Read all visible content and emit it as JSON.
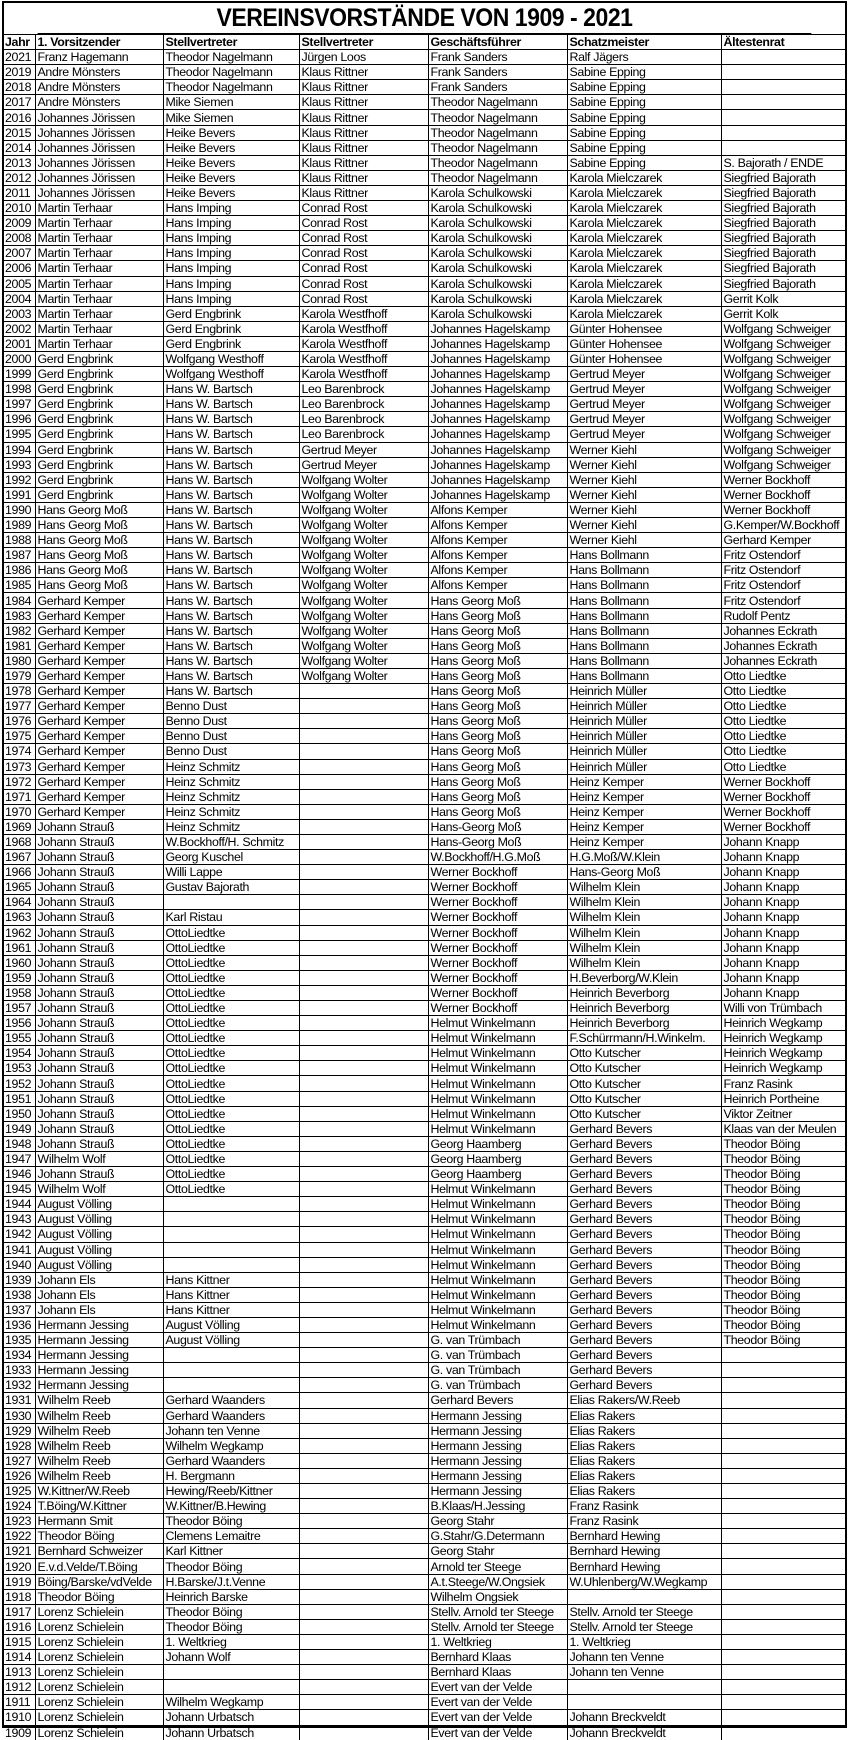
{
  "title": "VEREINSVORSTÄNDE VON 1909 - 2021",
  "columns": [
    "Jahr",
    "1. Vorsitzender",
    "Stellvertreter",
    "Stellvertreter",
    "Geschäftsführer",
    "Schatzmeister",
    "Ältestenrat"
  ],
  "rows": [
    [
      "2021",
      "Franz Hagemann",
      "Theodor Nagelmann",
      "Jürgen Loos",
      "Frank Sanders",
      "Ralf Jägers",
      ""
    ],
    [
      "2019",
      "Andre Mönsters",
      "Theodor Nagelmann",
      "Klaus Rittner",
      "Frank Sanders",
      "Sabine Epping",
      ""
    ],
    [
      "2018",
      "Andre Mönsters",
      "Theodor Nagelmann",
      "Klaus Rittner",
      "Frank Sanders",
      "Sabine Epping",
      ""
    ],
    [
      "2017",
      "Andre Mönsters",
      "Mike Siemen",
      "Klaus Rittner",
      "Theodor Nagelmann",
      "Sabine Epping",
      ""
    ],
    [
      "2016",
      "Johannes Jörissen",
      "Mike Siemen",
      "Klaus Rittner",
      "Theodor Nagelmann",
      "Sabine Epping",
      ""
    ],
    [
      "2015",
      "Johannes Jörissen",
      "Heike Bevers",
      "Klaus Rittner",
      "Theodor Nagelmann",
      "Sabine Epping",
      ""
    ],
    [
      "2014",
      "Johannes Jörissen",
      "Heike Bevers",
      "Klaus Rittner",
      "Theodor Nagelmann",
      "Sabine Epping",
      ""
    ],
    [
      "2013",
      "Johannes Jörissen",
      "Heike Bevers",
      "Klaus Rittner",
      "Theodor Nagelmann",
      "Sabine Epping",
      "S. Bajorath / ENDE"
    ],
    [
      "2012",
      "Johannes Jörissen",
      "Heike Bevers",
      "Klaus Rittner",
      "Theodor Nagelmann",
      "Karola Mielczarek",
      "Siegfried Bajorath"
    ],
    [
      "2011",
      "Johannes Jörissen",
      "Heike Bevers",
      "Klaus Rittner",
      "Karola Schulkowski",
      "Karola Mielczarek",
      "Siegfried Bajorath"
    ],
    [
      "2010",
      "Martin Terhaar",
      "Hans Imping",
      "Conrad Rost",
      "Karola Schulkowski",
      "Karola Mielczarek",
      "Siegfried Bajorath"
    ],
    [
      "2009",
      "Martin Terhaar",
      "Hans Imping",
      "Conrad Rost",
      "Karola Schulkowski",
      "Karola Mielczarek",
      "Siegfried Bajorath"
    ],
    [
      "2008",
      "Martin Terhaar",
      "Hans Imping",
      "Conrad Rost",
      "Karola Schulkowski",
      "Karola Mielczarek",
      "Siegfried Bajorath"
    ],
    [
      "2007",
      "Martin Terhaar",
      "Hans Imping",
      "Conrad Rost",
      "Karola Schulkowski",
      "Karola Mielczarek",
      "Siegfried Bajorath"
    ],
    [
      "2006",
      "Martin Terhaar",
      "Hans Imping",
      "Conrad Rost",
      "Karola Schulkowski",
      "Karola Mielczarek",
      "Siegfried Bajorath"
    ],
    [
      "2005",
      "Martin Terhaar",
      "Hans Imping",
      "Conrad Rost",
      "Karola Schulkowski",
      "Karola Mielczarek",
      "Siegfried Bajorath"
    ],
    [
      "2004",
      "Martin Terhaar",
      "Hans Imping",
      "Conrad Rost",
      "Karola Schulkowski",
      "Karola Mielczarek",
      "Gerrit Kolk"
    ],
    [
      "2003",
      "Martin Terhaar",
      "Gerd Engbrink",
      "Karola Westfhoff",
      "Karola Schulkowski",
      "Karola Mielczarek",
      "Gerrit Kolk"
    ],
    [
      "2002",
      "Martin Terhaar",
      "Gerd Engbrink",
      "Karola Westfhoff",
      "Johannes Hagelskamp",
      "Günter Hohensee",
      "Wolfgang Schweiger"
    ],
    [
      "2001",
      "Martin Terhaar",
      "Gerd Engbrink",
      "Karola Westfhoff",
      "Johannes Hagelskamp",
      "Günter Hohensee",
      "Wolfgang Schweiger"
    ],
    [
      "2000",
      "Gerd Engbrink",
      "Wolfgang Westhoff",
      "Karola Westfhoff",
      "Johannes Hagelskamp",
      "Günter Hohensee",
      "Wolfgang Schweiger"
    ],
    [
      "1999",
      "Gerd Engbrink",
      "Wolfgang Westhoff",
      "Karola Westfhoff",
      "Johannes Hagelskamp",
      "Gertrud Meyer",
      "Wolfgang Schweiger"
    ],
    [
      "1998",
      "Gerd Engbrink",
      "Hans W. Bartsch",
      "Leo Barenbrock",
      "Johannes Hagelskamp",
      "Gertrud Meyer",
      "Wolfgang Schweiger"
    ],
    [
      "1997",
      "Gerd Engbrink",
      "Hans W. Bartsch",
      "Leo Barenbrock",
      "Johannes Hagelskamp",
      "Gertrud Meyer",
      "Wolfgang Schweiger"
    ],
    [
      "1996",
      "Gerd Engbrink",
      "Hans W. Bartsch",
      "Leo Barenbrock",
      "Johannes Hagelskamp",
      "Gertrud Meyer",
      "Wolfgang Schweiger"
    ],
    [
      "1995",
      "Gerd Engbrink",
      "Hans W. Bartsch",
      "Leo Barenbrock",
      "Johannes Hagelskamp",
      "Gertrud Meyer",
      "Wolfgang Schweiger"
    ],
    [
      "1994",
      "Gerd Engbrink",
      "Hans W. Bartsch",
      "Gertrud Meyer",
      "Johannes Hagelskamp",
      "Werner Kiehl",
      "Wolfgang Schweiger"
    ],
    [
      "1993",
      "Gerd Engbrink",
      "Hans W. Bartsch",
      "Gertrud Meyer",
      "Johannes Hagelskamp",
      "Werner Kiehl",
      "Wolfgang Schweiger"
    ],
    [
      "1992",
      "Gerd Engbrink",
      "Hans W. Bartsch",
      "Wolfgang Wolter",
      "Johannes Hagelskamp",
      "Werner Kiehl",
      "Werner Bockhoff"
    ],
    [
      "1991",
      "Gerd Engbrink",
      "Hans W. Bartsch",
      "Wolfgang Wolter",
      "Johannes Hagelskamp",
      "Werner Kiehl",
      "Werner Bockhoff"
    ],
    [
      "1990",
      "Hans Georg Moß",
      "Hans W. Bartsch",
      "Wolfgang Wolter",
      "Alfons Kemper",
      "Werner Kiehl",
      "Werner Bockhoff"
    ],
    [
      "1989",
      "Hans Georg Moß",
      "Hans W. Bartsch",
      "Wolfgang Wolter",
      "Alfons Kemper",
      "Werner Kiehl",
      "G.Kemper/W.Bockhoff"
    ],
    [
      "1988",
      "Hans Georg Moß",
      "Hans W. Bartsch",
      "Wolfgang Wolter",
      "Alfons Kemper",
      "Werner Kiehl",
      "Gerhard Kemper"
    ],
    [
      "1987",
      "Hans Georg Moß",
      "Hans W. Bartsch",
      "Wolfgang Wolter",
      "Alfons Kemper",
      "Hans Bollmann",
      "Fritz Ostendorf"
    ],
    [
      "1986",
      "Hans Georg Moß",
      "Hans W. Bartsch",
      "Wolfgang Wolter",
      "Alfons Kemper",
      "Hans Bollmann",
      "Fritz Ostendorf"
    ],
    [
      "1985",
      "Hans Georg Moß",
      "Hans W. Bartsch",
      "Wolfgang Wolter",
      "Alfons Kemper",
      "Hans Bollmann",
      "Fritz Ostendorf"
    ],
    [
      "1984",
      "Gerhard Kemper",
      "Hans W. Bartsch",
      "Wolfgang Wolter",
      "Hans Georg Moß",
      "Hans Bollmann",
      "Fritz Ostendorf"
    ],
    [
      "1983",
      "Gerhard Kemper",
      "Hans W. Bartsch",
      "Wolfgang Wolter",
      "Hans Georg Moß",
      "Hans Bollmann",
      "Rudolf Pentz"
    ],
    [
      "1982",
      "Gerhard Kemper",
      "Hans W. Bartsch",
      "Wolfgang Wolter",
      "Hans Georg Moß",
      "Hans Bollmann",
      "Johannes Eckrath"
    ],
    [
      "1981",
      "Gerhard Kemper",
      "Hans W. Bartsch",
      "Wolfgang Wolter",
      "Hans Georg Moß",
      "Hans Bollmann",
      "Johannes Eckrath"
    ],
    [
      "1980",
      "Gerhard Kemper",
      "Hans W. Bartsch",
      "Wolfgang Wolter",
      "Hans Georg Moß",
      "Hans Bollmann",
      "Johannes Eckrath"
    ],
    [
      "1979",
      "Gerhard Kemper",
      "Hans W. Bartsch",
      "Wolfgang Wolter",
      "Hans Georg Moß",
      "Hans Bollmann",
      "Otto Liedtke"
    ],
    [
      "1978",
      "Gerhard Kemper",
      "Hans W. Bartsch",
      "",
      "Hans Georg Moß",
      "Heinrich Müller",
      "Otto Liedtke"
    ],
    [
      "1977",
      "Gerhard Kemper",
      "Benno Dust",
      "",
      "Hans Georg Moß",
      "Heinrich Müller",
      "Otto Liedtke"
    ],
    [
      "1976",
      "Gerhard Kemper",
      "Benno Dust",
      "",
      "Hans Georg Moß",
      "Heinrich Müller",
      "Otto Liedtke"
    ],
    [
      "1975",
      "Gerhard Kemper",
      "Benno Dust",
      "",
      "Hans Georg Moß",
      "Heinrich Müller",
      "Otto Liedtke"
    ],
    [
      "1974",
      "Gerhard Kemper",
      "Benno Dust",
      "",
      "Hans Georg Moß",
      "Heinrich Müller",
      "Otto Liedtke"
    ],
    [
      "1973",
      "Gerhard Kemper",
      "Heinz Schmitz",
      "",
      "Hans Georg Moß",
      "Heinrich Müller",
      "Otto Liedtke"
    ],
    [
      "1972",
      "Gerhard Kemper",
      "Heinz Schmitz",
      "",
      "Hans Georg Moß",
      "Heinz Kemper",
      "Werner Bockhoff"
    ],
    [
      "1971",
      "Gerhard Kemper",
      "Heinz Schmitz",
      "",
      "Hans Georg Moß",
      "Heinz Kemper",
      "Werner Bockhoff"
    ],
    [
      "1970",
      "Gerhard Kemper",
      "Heinz Schmitz",
      "",
      "Hans Georg Moß",
      "Heinz Kemper",
      "Werner Bockhoff"
    ],
    [
      "1969",
      "Johann Strauß",
      "Heinz Schmitz",
      "",
      "Hans-Georg Moß",
      "Heinz Kemper",
      "Werner Bockhoff"
    ],
    [
      "1968",
      "Johann Strauß",
      "W.Bockhoff/H. Schmitz",
      "",
      "Hans-Georg Moß",
      "Heinz Kemper",
      "Johann Knapp"
    ],
    [
      "1967",
      "Johann Strauß",
      "Georg Kuschel",
      "",
      "W.Bockhoff/H.G.Moß",
      "H.G.Moß/W.Klein",
      "Johann Knapp"
    ],
    [
      "1966",
      "Johann Strauß",
      "Willi Lappe",
      "",
      "Werner Bockhoff",
      "Hans-Georg Moß",
      "Johann Knapp"
    ],
    [
      "1965",
      "Johann Strauß",
      "Gustav Bajorath",
      "",
      "Werner Bockhoff",
      "Wilhelm Klein",
      "Johann Knapp"
    ],
    [
      "1964",
      "Johann Strauß",
      "",
      "",
      "Werner Bockhoff",
      "Wilhelm Klein",
      "Johann Knapp"
    ],
    [
      "1963",
      "Johann Strauß",
      "Karl Ristau",
      "",
      "Werner Bockhoff",
      "Wilhelm Klein",
      "Johann Knapp"
    ],
    [
      "1962",
      "Johann Strauß",
      "OttoLiedtke",
      "",
      "Werner Bockhoff",
      "Wilhelm Klein",
      "Johann Knapp"
    ],
    [
      "1961",
      "Johann Strauß",
      "OttoLiedtke",
      "",
      "Werner Bockhoff",
      "Wilhelm Klein",
      "Johann Knapp"
    ],
    [
      "1960",
      "Johann Strauß",
      "OttoLiedtke",
      "",
      "Werner Bockhoff",
      "Wilhelm Klein",
      "Johann Knapp"
    ],
    [
      "1959",
      "Johann Strauß",
      "OttoLiedtke",
      "",
      "Werner Bockhoff",
      "H.Beverborg/W.Klein",
      "Johann Knapp"
    ],
    [
      "1958",
      "Johann Strauß",
      "OttoLiedtke",
      "",
      "Werner Bockhoff",
      "Heinrich Beverborg",
      "Johann Knapp"
    ],
    [
      "1957",
      "Johann Strauß",
      "OttoLiedtke",
      "",
      "Werner Bockhoff",
      "Heinrich Beverborg",
      "Willi von Trümbach"
    ],
    [
      "1956",
      "Johann Strauß",
      "OttoLiedtke",
      "",
      "Helmut Winkelmann",
      "Heinrich Beverborg",
      "Heinrich Wegkamp"
    ],
    [
      "1955",
      "Johann Strauß",
      "OttoLiedtke",
      "",
      "Helmut Winkelmann",
      "F.Schürrmann/H.Winkelm.",
      "Heinrich Wegkamp"
    ],
    [
      "1954",
      "Johann Strauß",
      "OttoLiedtke",
      "",
      "Helmut Winkelmann",
      "Otto Kutscher",
      "Heinrich Wegkamp"
    ],
    [
      "1953",
      "Johann Strauß",
      "OttoLiedtke",
      "",
      "Helmut Winkelmann",
      "Otto Kutscher",
      "Heinrich Wegkamp"
    ],
    [
      "1952",
      "Johann Strauß",
      "OttoLiedtke",
      "",
      "Helmut Winkelmann",
      "Otto Kutscher",
      "Franz Rasink"
    ],
    [
      "1951",
      "Johann Strauß",
      "OttoLiedtke",
      "",
      "Helmut Winkelmann",
      "Otto Kutscher",
      "Heinrich Portheine"
    ],
    [
      "1950",
      "Johann Strauß",
      "OttoLiedtke",
      "",
      "Helmut Winkelmann",
      "Otto Kutscher",
      "Viktor Zeitner"
    ],
    [
      "1949",
      "Johann Strauß",
      "OttoLiedtke",
      "",
      "Helmut Winkelmann",
      "Gerhard Bevers",
      "Klaas van der Meulen"
    ],
    [
      "1948",
      "Johann Strauß",
      "OttoLiedtke",
      "",
      "Georg Haamberg",
      "Gerhard Bevers",
      "Theodor Böing"
    ],
    [
      "1947",
      "Wilhelm Wolf",
      "OttoLiedtke",
      "",
      "Georg Haamberg",
      "Gerhard Bevers",
      "Theodor Böing"
    ],
    [
      "1946",
      "Johann Strauß",
      "OttoLiedtke",
      "",
      "Georg Haamberg",
      "Gerhard Bevers",
      "Theodor Böing"
    ],
    [
      "1945",
      "Wilhelm Wolf",
      "OttoLiedtke",
      "",
      "Helmut Winkelmann",
      "Gerhard Bevers",
      "Theodor Böing"
    ],
    [
      "1944",
      "August Völling",
      "",
      "",
      "Helmut Winkelmann",
      "Gerhard Bevers",
      "Theodor Böing"
    ],
    [
      "1943",
      "August Völling",
      "",
      "",
      "Helmut Winkelmann",
      "Gerhard Bevers",
      "Theodor Böing"
    ],
    [
      "1942",
      "August Völling",
      "",
      "",
      "Helmut Winkelmann",
      "Gerhard Bevers",
      "Theodor Böing"
    ],
    [
      "1941",
      "August Völling",
      "",
      "",
      "Helmut Winkelmann",
      "Gerhard Bevers",
      "Theodor Böing"
    ],
    [
      "1940",
      "August Völling",
      "",
      "",
      "Helmut Winkelmann",
      "Gerhard Bevers",
      "Theodor Böing"
    ],
    [
      "1939",
      "Johann Els",
      "Hans Kittner",
      "",
      "Helmut Winkelmann",
      "Gerhard Bevers",
      "Theodor Böing"
    ],
    [
      "1938",
      "Johann Els",
      "Hans Kittner",
      "",
      "Helmut Winkelmann",
      "Gerhard Bevers",
      "Theodor Böing"
    ],
    [
      "1937",
      "Johann Els",
      "Hans Kittner",
      "",
      "Helmut Winkelmann",
      "Gerhard Bevers",
      "Theodor Böing"
    ],
    [
      "1936",
      "Hermann Jessing",
      "August Völling",
      "",
      "Helmut Winkelmann",
      "Gerhard Bevers",
      "Theodor Böing"
    ],
    [
      "1935",
      "Hermann Jessing",
      "August Völling",
      "",
      "G. van Trümbach",
      "Gerhard Bevers",
      "Theodor Böing"
    ],
    [
      "1934",
      "Hermann Jessing",
      "",
      "",
      "G. van Trümbach",
      "Gerhard Bevers",
      ""
    ],
    [
      "1933",
      "Hermann Jessing",
      "",
      "",
      "G. van Trümbach",
      "Gerhard Bevers",
      ""
    ],
    [
      "1932",
      "Hermann Jessing",
      "",
      "",
      "G. van Trümbach",
      "Gerhard Bevers",
      ""
    ],
    [
      "1931",
      "Wilhelm Reeb",
      "Gerhard Waanders",
      "",
      "Gerhard Bevers",
      "Elias Rakers/W.Reeb",
      ""
    ],
    [
      "1930",
      "Wilhelm Reeb",
      "Gerhard Waanders",
      "",
      "Hermann Jessing",
      "Elias Rakers",
      ""
    ],
    [
      "1929",
      "Wilhelm Reeb",
      "Johann ten Venne",
      "",
      "Hermann Jessing",
      "Elias Rakers",
      ""
    ],
    [
      "1928",
      "Wilhelm Reeb",
      "Wilhelm Wegkamp",
      "",
      "Hermann Jessing",
      "Elias Rakers",
      ""
    ],
    [
      "1927",
      "Wilhelm Reeb",
      "Gerhard Waanders",
      "",
      "Hermann Jessing",
      "Elias Rakers",
      ""
    ],
    [
      "1926",
      "Wilhelm Reeb",
      "H. Bergmann",
      "",
      "Hermann Jessing",
      "Elias Rakers",
      ""
    ],
    [
      "1925",
      "W.Kittner/W.Reeb",
      "Hewing/Reeb/Kittner",
      "",
      "Hermann Jessing",
      "Elias Rakers",
      ""
    ],
    [
      "1924",
      "T.Böing/W.Kittner",
      "W.Kittner/B.Hewing",
      "",
      "B.Klaas/H.Jessing",
      "Franz Rasink",
      ""
    ],
    [
      "1923",
      "Hermann Smit",
      "Theodor Böing",
      "",
      "Georg Stahr",
      "Franz Rasink",
      ""
    ],
    [
      "1922",
      "Theodor Böing",
      "Clemens Lemaitre",
      "",
      "G.Stahr/G.Determann",
      "Bernhard Hewing",
      ""
    ],
    [
      "1921",
      "Bernhard Schweizer",
      "Karl Kittner",
      "",
      "Georg Stahr",
      "Bernhard Hewing",
      ""
    ],
    [
      "1920",
      "E.v.d.Velde/T.Böing",
      "Theodor Böing",
      "",
      "Arnold ter Steege",
      "Bernhard Hewing",
      ""
    ],
    [
      "1919",
      "Böing/Barske/vdVelde",
      "H.Barske/J.t.Venne",
      "",
      "A.t.Steege/W.Ongsiek",
      "W.Uhlenberg/W.Wegkamp",
      ""
    ],
    [
      "1918",
      "Theodor Böing",
      "Heinrich Barske",
      "",
      "Wilhelm Ongsiek",
      "",
      ""
    ],
    [
      "1917",
      "Lorenz Schielein",
      "Theodor Böing",
      "",
      "Stellv. Arnold ter Steege",
      "Stellv. Arnold ter Steege",
      ""
    ],
    [
      "1916",
      "Lorenz Schielein",
      "Theodor Böing",
      "",
      "Stellv. Arnold ter Steege",
      "Stellv. Arnold ter Steege",
      ""
    ],
    [
      "1915",
      "Lorenz Schielein",
      "1. Weltkrieg",
      "",
      "1. Weltkrieg",
      "1. Weltkrieg",
      ""
    ],
    [
      "1914",
      "Lorenz Schielein",
      "Johann Wolf",
      "",
      "Bernhard Klaas",
      "Johann ten Venne",
      ""
    ],
    [
      "1913",
      "Lorenz Schielein",
      "",
      "",
      "Bernhard Klaas",
      "Johann ten Venne",
      ""
    ],
    [
      "1912",
      "Lorenz Schielein",
      "",
      "",
      "Evert van der Velde",
      "",
      ""
    ],
    [
      "1911",
      "Lorenz Schielein",
      "Wilhelm Wegkamp",
      "",
      "Evert van der Velde",
      "",
      ""
    ],
    [
      "1910",
      "Lorenz Schielein",
      "Johann Urbatsch",
      "",
      "Evert van der Velde",
      "Johann Breckveldt",
      ""
    ],
    [
      "1909",
      "Lorenz Schielein",
      "Johann Urbatsch",
      "",
      "Evert van der Velde",
      "Johann Breckveldt",
      ""
    ]
  ]
}
